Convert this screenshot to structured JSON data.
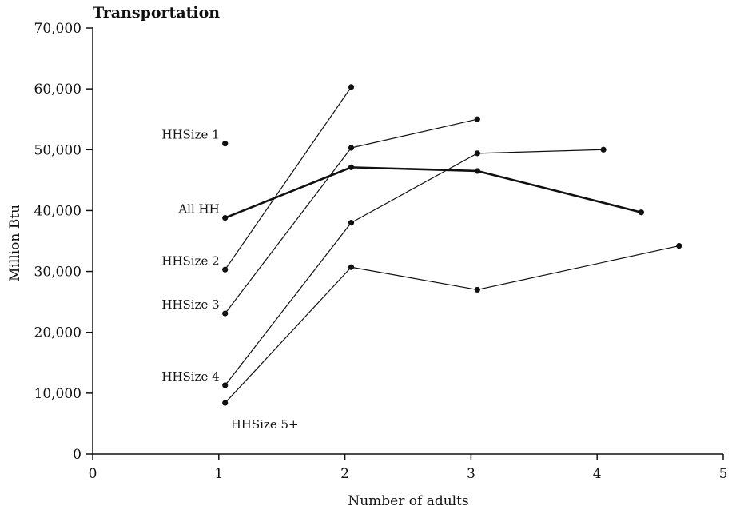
{
  "chart_data": {
    "type": "line",
    "title": "Transportation",
    "xlabel": "Number of adults",
    "ylabel": "Million Btu",
    "xlim": [
      0,
      5
    ],
    "ylim": [
      0,
      70000
    ],
    "x_ticks": [
      "0",
      "1",
      "2",
      "3",
      "4",
      "5"
    ],
    "y_ticks": [
      "0",
      "10,000",
      "20,000",
      "30,000",
      "40,000",
      "50,000",
      "60,000",
      "70,000"
    ],
    "grid": false,
    "series": [
      {
        "name": "HHSize 1",
        "x": [
          1.05
        ],
        "values": [
          51000
        ],
        "emphasis": false
      },
      {
        "name": "All HH",
        "x": [
          1.05,
          2.05,
          3.05,
          4.35
        ],
        "values": [
          38800,
          47100,
          46500,
          39700
        ],
        "emphasis": true
      },
      {
        "name": "HHSize 2",
        "x": [
          1.05,
          2.05
        ],
        "values": [
          30300,
          60300
        ],
        "emphasis": false
      },
      {
        "name": "HHSize 3",
        "x": [
          1.05,
          2.05,
          3.05
        ],
        "values": [
          23100,
          50300,
          55000
        ],
        "emphasis": false
      },
      {
        "name": "HHSize 4",
        "x": [
          1.05,
          2.05,
          3.05,
          4.05
        ],
        "values": [
          11300,
          38000,
          49400,
          50000
        ],
        "emphasis": false
      },
      {
        "name": "HHSize 5+",
        "x": [
          1.05,
          2.05,
          3.05,
          4.65
        ],
        "values": [
          8400,
          30700,
          27000,
          34200
        ],
        "emphasis": false
      }
    ]
  }
}
